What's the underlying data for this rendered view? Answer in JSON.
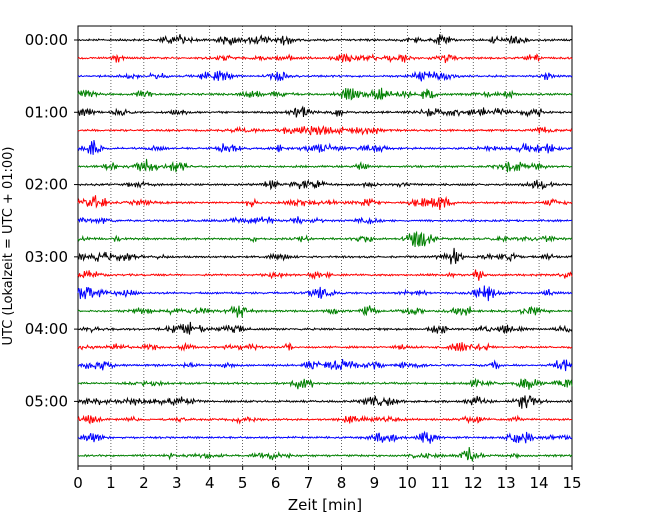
{
  "chart_data": {
    "type": "line",
    "title": "",
    "xlabel": "Zeit  [min]",
    "ylabel": "UTC (Lokalzeit = UTC + 01:00)",
    "xlim": [
      0,
      15
    ],
    "x_ticks": [
      "0",
      "1",
      "2",
      "3",
      "4",
      "5",
      "6",
      "7",
      "8",
      "9",
      "10",
      "11",
      "12",
      "13",
      "14",
      "15"
    ],
    "y_tick_labels": [
      "00:00",
      "01:00",
      "02:00",
      "03:00",
      "04:00",
      "05:00"
    ],
    "trace_count": 24,
    "trace_interval_minutes": 15,
    "trace_colors": [
      "#000000",
      "#ff0000",
      "#0000ff",
      "#008000"
    ],
    "grid": "vertical dotted",
    "legend": "none"
  }
}
